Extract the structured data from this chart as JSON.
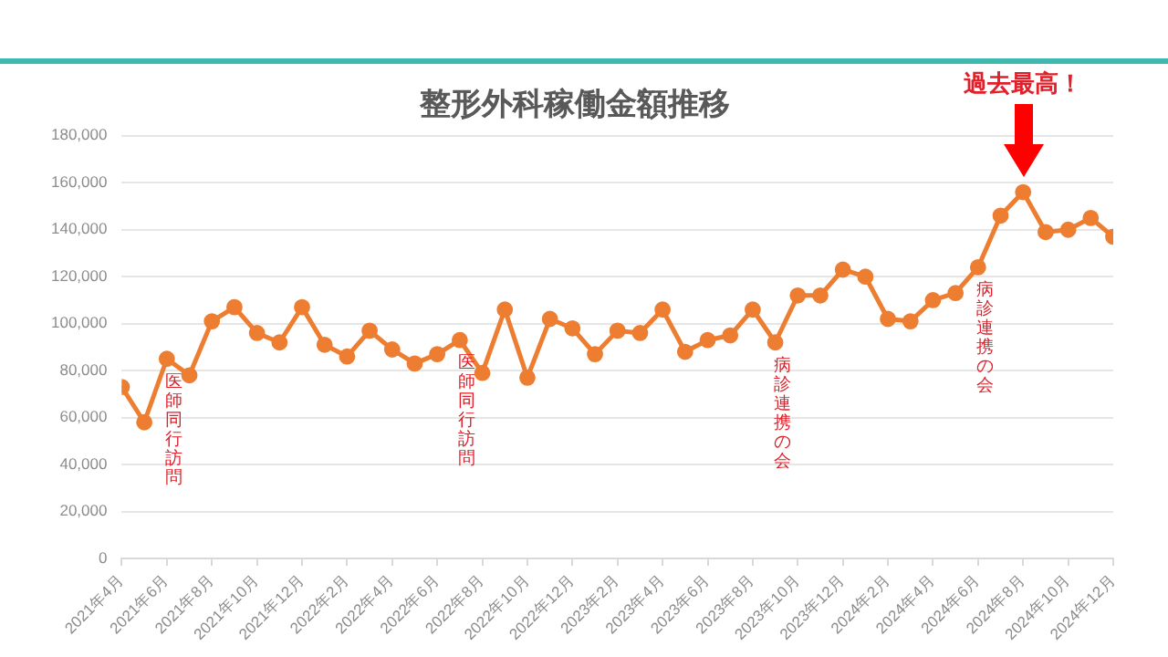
{
  "chart_data": {
    "type": "line",
    "title": "整形外科稼働金額推移",
    "x": [
      "2021-04",
      "2021-05",
      "2021-06",
      "2021-07",
      "2021-08",
      "2021-09",
      "2021-10",
      "2021-11",
      "2021-12",
      "2022-01",
      "2022-02",
      "2022-03",
      "2022-04",
      "2022-05",
      "2022-06",
      "2022-07",
      "2022-08",
      "2022-09",
      "2022-10",
      "2022-11",
      "2022-12",
      "2023-01",
      "2023-02",
      "2023-03",
      "2023-04",
      "2023-05",
      "2023-06",
      "2023-07",
      "2023-08",
      "2023-09",
      "2023-10",
      "2023-11",
      "2023-12",
      "2024-01",
      "2024-02",
      "2024-03",
      "2024-04",
      "2024-05",
      "2024-06",
      "2024-07",
      "2024-08",
      "2024-09",
      "2024-10",
      "2024-11",
      "2024-12"
    ],
    "series": [
      {
        "color": "#ed7d31",
        "values": [
          73000,
          58000,
          85000,
          78000,
          101000,
          107000,
          96000,
          92000,
          107000,
          91000,
          86000,
          97000,
          89000,
          83000,
          87000,
          93000,
          79000,
          106000,
          77000,
          102000,
          98000,
          87000,
          97000,
          96000,
          106000,
          88000,
          93000,
          95000,
          106000,
          92000,
          112000,
          112000,
          123000,
          120000,
          102000,
          101000,
          110000,
          113000,
          124000,
          146000,
          156000,
          139000,
          140000,
          145000,
          137000
        ]
      }
    ],
    "xlim": [
      "2021-04",
      "2024-12"
    ],
    "xticks": [
      {
        "value": "2021-04",
        "label": "2021年4月"
      },
      {
        "value": "2021-06",
        "label": "2021年6月"
      },
      {
        "value": "2021-08",
        "label": "2021年8月"
      },
      {
        "value": "2021-10",
        "label": "2021年10月"
      },
      {
        "value": "2021-12",
        "label": "2021年12月"
      },
      {
        "value": "2022-02",
        "label": "2022年2月"
      },
      {
        "value": "2022-04",
        "label": "2022年4月"
      },
      {
        "value": "2022-06",
        "label": "2022年6月"
      },
      {
        "value": "2022-08",
        "label": "2022年8月"
      },
      {
        "value": "2022-10",
        "label": "2022年10月"
      },
      {
        "value": "2022-12",
        "label": "2022年12月"
      },
      {
        "value": "2023-02",
        "label": "2023年2月"
      },
      {
        "value": "2023-04",
        "label": "2023年4月"
      },
      {
        "value": "2023-06",
        "label": "2023年6月"
      },
      {
        "value": "2023-08",
        "label": "2023年8月"
      },
      {
        "value": "2023-10",
        "label": "2023年10月"
      },
      {
        "value": "2023-12",
        "label": "2023年12月"
      },
      {
        "value": "2024-02",
        "label": "2024年2月"
      },
      {
        "value": "2024-04",
        "label": "2024年4月"
      },
      {
        "value": "2024-06",
        "label": "2024年6月"
      },
      {
        "value": "2024-08",
        "label": "2024年8月"
      },
      {
        "value": "2024-10",
        "label": "2024年10月"
      },
      {
        "value": "2024-12",
        "label": "2024年12月"
      }
    ],
    "ylim": [
      0,
      180000
    ],
    "yticks": [
      {
        "value": 0,
        "label": "0"
      },
      {
        "value": 20000,
        "label": "20,000"
      },
      {
        "value": 40000,
        "label": "40,000"
      },
      {
        "value": 60000,
        "label": "60,000"
      },
      {
        "value": 80000,
        "label": "80,000"
      },
      {
        "value": 100000,
        "label": "100,000"
      },
      {
        "value": 120000,
        "label": "120,000"
      },
      {
        "value": 140000,
        "label": "140,000"
      },
      {
        "value": 160000,
        "label": "160,000"
      },
      {
        "value": 180000,
        "label": "180,000"
      }
    ],
    "grid": "y",
    "marker": "circle",
    "line_style": "solid",
    "legend": false,
    "annotations": [
      {
        "text": "医師同行訪問",
        "x": "2021-06",
        "y": 85000
      },
      {
        "text": "医師同行訪問",
        "x": "2022-07",
        "y": 93000
      },
      {
        "text": "病診連携の会",
        "x": "2023-09",
        "y": 92000
      },
      {
        "text": "病診連携の会",
        "x": "2024-06",
        "y": 124000
      },
      "過去最高！"
    ]
  }
}
